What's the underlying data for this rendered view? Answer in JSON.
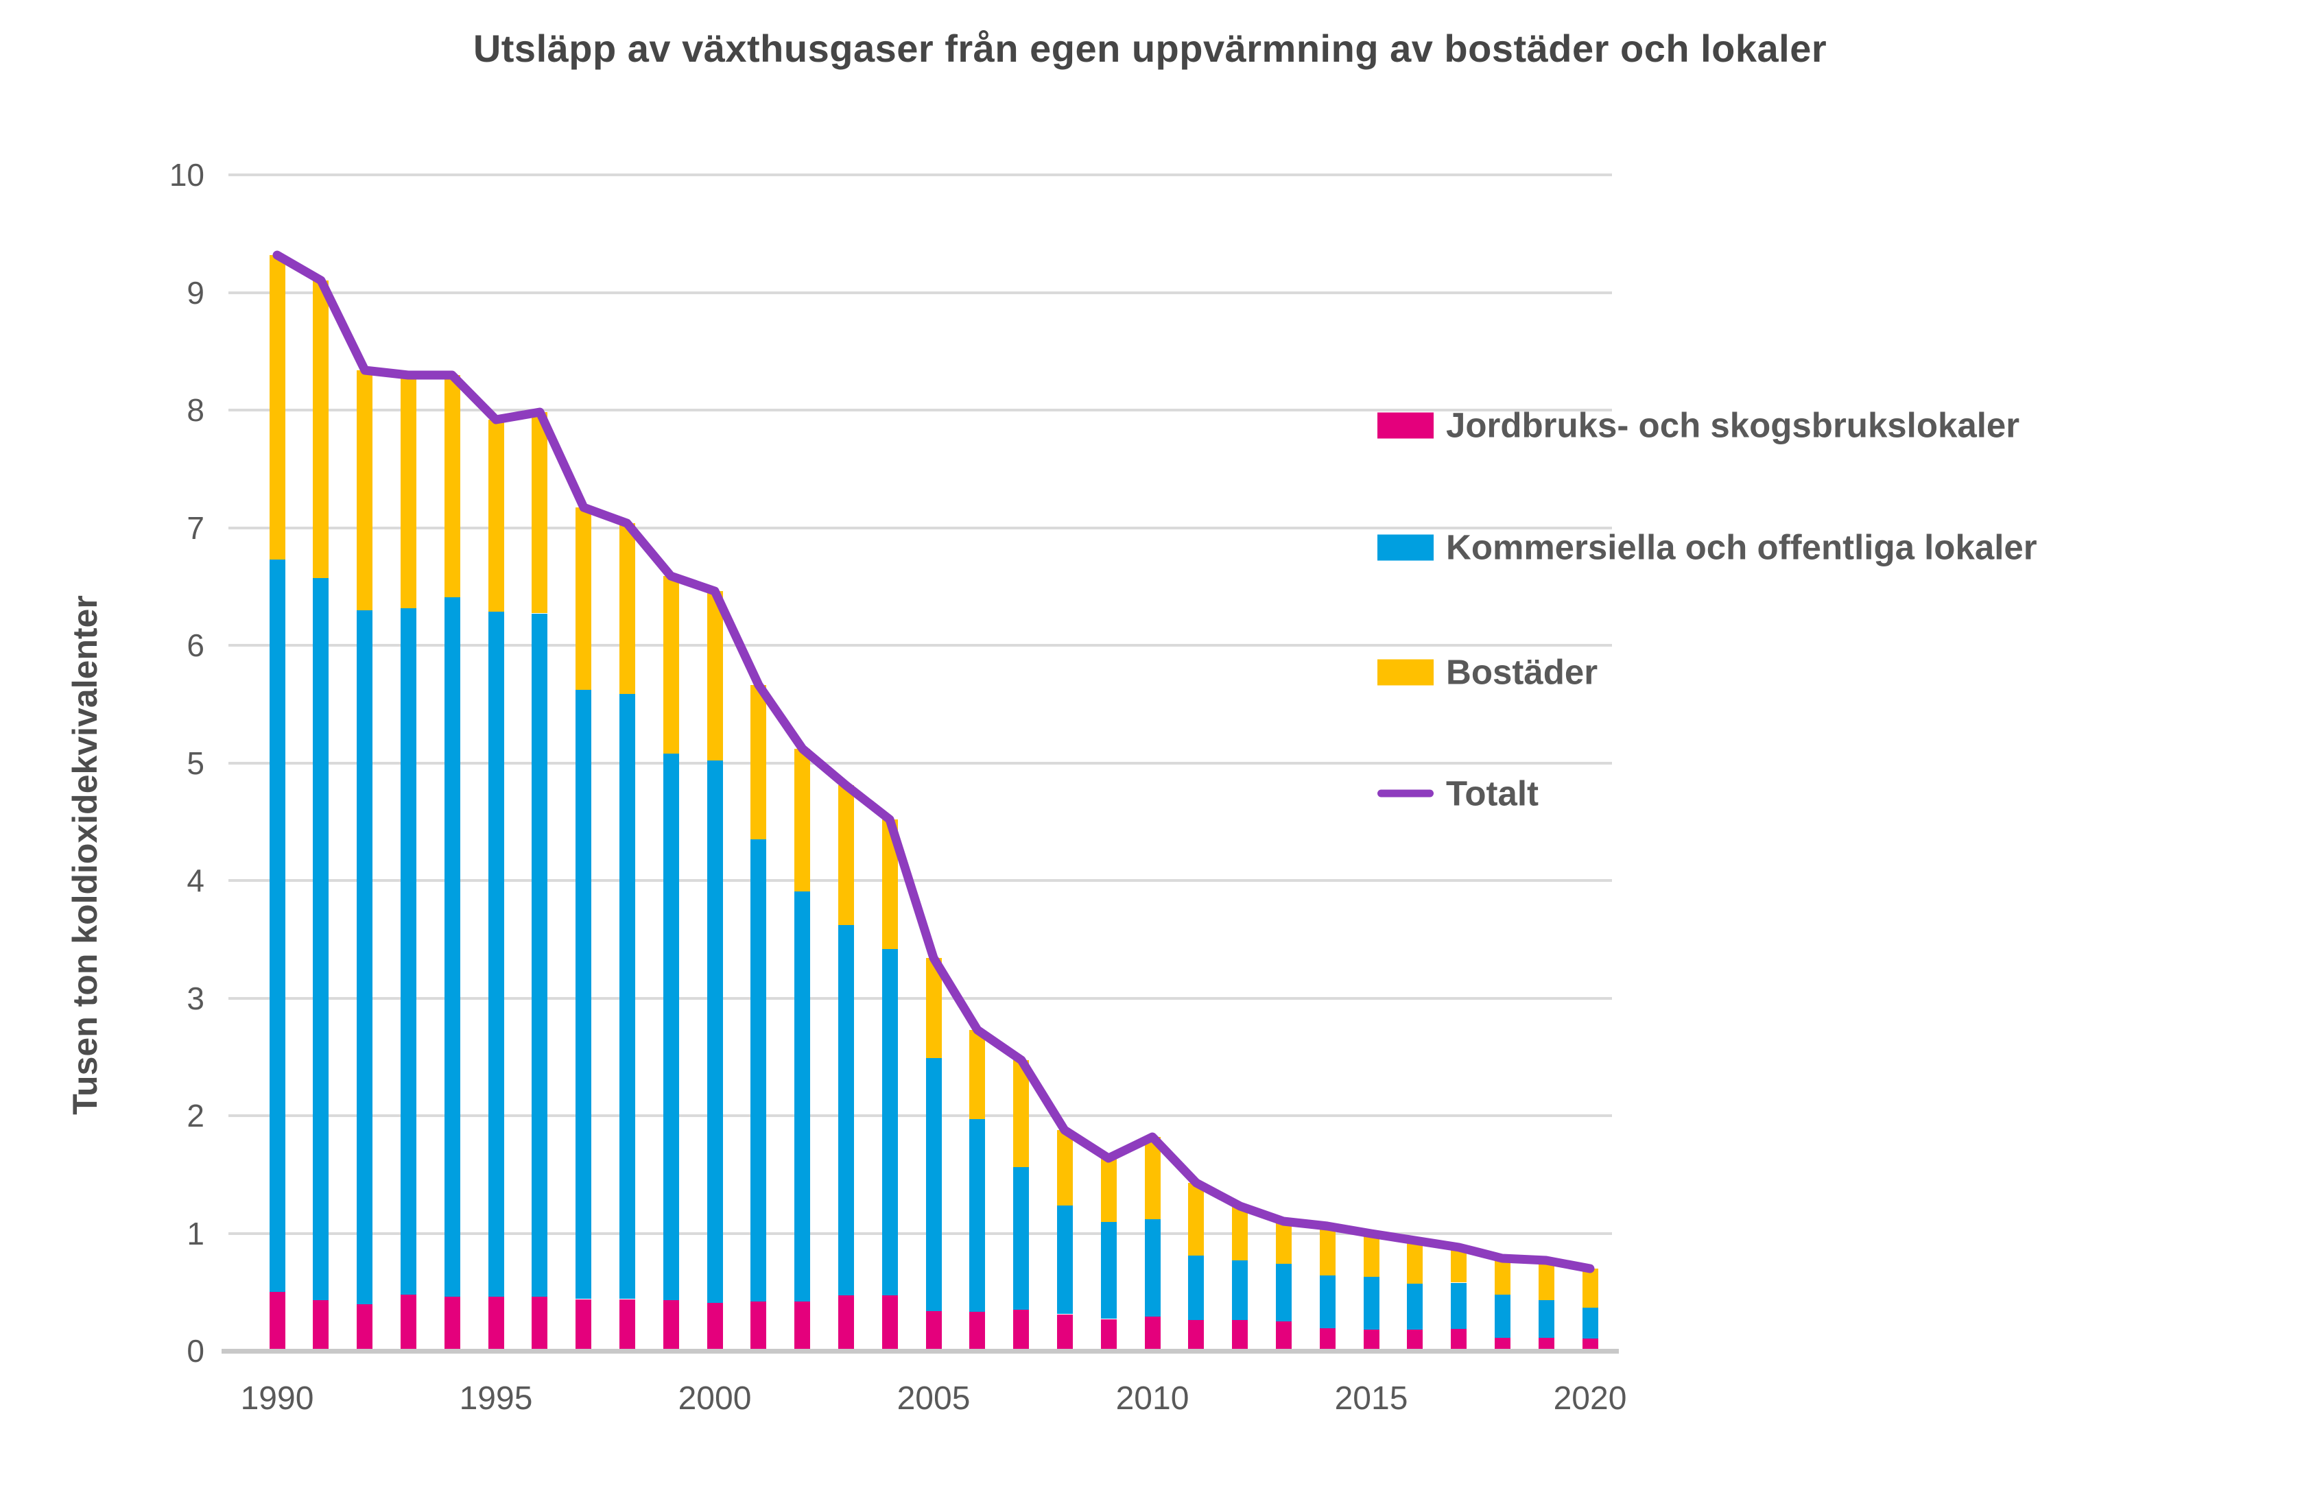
{
  "title": "Utsläpp av växthusgaser från egen uppvärmning av bostäder och lokaler",
  "y_axis": {
    "title": "Tusen ton koldioxidekvivalenter",
    "ticks": [
      "0",
      "1",
      "2",
      "3",
      "4",
      "5",
      "6",
      "7",
      "8",
      "9",
      "10"
    ],
    "range": [
      0,
      10
    ]
  },
  "x_axis": {
    "tick_labels": [
      "1990",
      "1995",
      "2000",
      "2005",
      "2010",
      "2015",
      "2020"
    ],
    "tick_years": [
      1990,
      1995,
      2000,
      2005,
      2010,
      2015,
      2020
    ]
  },
  "legend": {
    "items": [
      {
        "label": "Jordbruks- och skogsbrukslokaler",
        "color": "#E4007C",
        "type": "bar"
      },
      {
        "label": "Kommersiella och offentliga lokaler",
        "color": "#009FE0",
        "type": "bar"
      },
      {
        "label": "Bostäder",
        "color": "#FFC000",
        "type": "bar"
      },
      {
        "label": "Totalt",
        "color": "#8E3CBE",
        "type": "line"
      }
    ],
    "position": "right"
  },
  "colors": {
    "grid": "#DADADA",
    "axis": "#C8C8C8",
    "text": "#595959",
    "title_text": "#464646"
  },
  "chart_data": {
    "type": "bar",
    "stacked": true,
    "title": "Utsläpp av växthusgaser från egen uppvärmning av bostäder och lokaler",
    "ylabel": "Tusen ton koldioxidekvivalenter",
    "xlabel": "",
    "ylim": [
      0,
      10
    ],
    "grid": true,
    "legend_position": "right",
    "x": [
      1990,
      1991,
      1992,
      1993,
      1994,
      1995,
      1996,
      1997,
      1998,
      1999,
      2000,
      2001,
      2002,
      2003,
      2004,
      2005,
      2006,
      2007,
      2008,
      2009,
      2010,
      2011,
      2012,
      2013,
      2014,
      2015,
      2016,
      2017,
      2018,
      2019,
      2020
    ],
    "series": [
      {
        "name": "Jordbruks- och skogsbrukslokaler",
        "color": "#E4007C",
        "values": [
          0.5,
          0.43,
          0.4,
          0.48,
          0.46,
          0.46,
          0.46,
          0.44,
          0.44,
          0.43,
          0.41,
          0.42,
          0.42,
          0.47,
          0.47,
          0.34,
          0.33,
          0.35,
          0.31,
          0.27,
          0.29,
          0.26,
          0.26,
          0.25,
          0.19,
          0.18,
          0.18,
          0.19,
          0.11,
          0.11,
          0.11
        ]
      },
      {
        "name": "Kommersiella och offentliga lokaler",
        "color": "#009FE0",
        "values": [
          6.23,
          6.14,
          5.9,
          5.84,
          5.95,
          5.83,
          5.81,
          5.18,
          5.15,
          4.65,
          4.61,
          3.93,
          3.49,
          3.15,
          2.95,
          2.15,
          1.64,
          1.21,
          0.93,
          0.83,
          0.83,
          0.55,
          0.51,
          0.49,
          0.45,
          0.45,
          0.39,
          0.39,
          0.37,
          0.32,
          0.26
        ]
      },
      {
        "name": "Bostäder",
        "color": "#FFC000",
        "values": [
          2.59,
          2.53,
          2.04,
          1.98,
          1.89,
          1.63,
          1.71,
          1.55,
          1.45,
          1.51,
          1.44,
          1.31,
          1.21,
          1.19,
          1.1,
          0.85,
          0.76,
          0.91,
          0.64,
          0.54,
          0.7,
          0.62,
          0.46,
          0.36,
          0.42,
          0.37,
          0.37,
          0.3,
          0.31,
          0.34,
          0.33
        ]
      }
    ],
    "line_series": {
      "name": "Totalt",
      "color": "#8E3CBE",
      "values": [
        9.32,
        9.1,
        8.34,
        8.3,
        8.3,
        7.92,
        7.98,
        7.17,
        7.04,
        6.59,
        6.46,
        5.66,
        5.12,
        4.81,
        4.52,
        3.34,
        2.73,
        2.47,
        1.88,
        1.64,
        1.82,
        1.43,
        1.23,
        1.1,
        1.06,
        1.0,
        0.94,
        0.88,
        0.79,
        0.77,
        0.7
      ]
    }
  }
}
